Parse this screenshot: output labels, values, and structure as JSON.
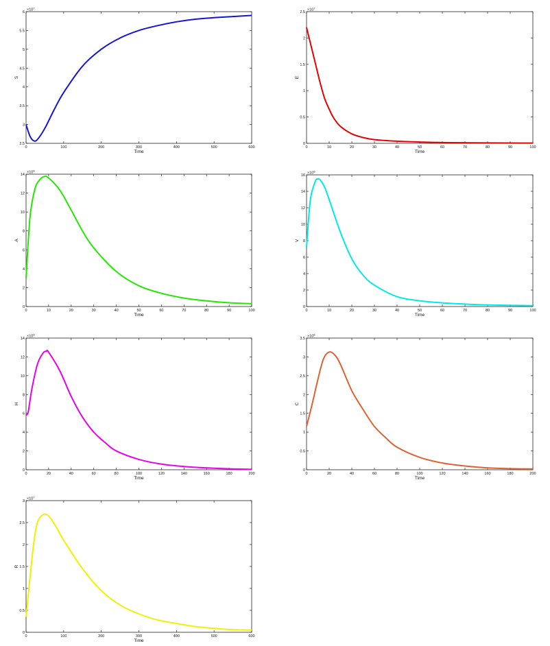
{
  "chart_data": [
    {
      "type": "line",
      "ylabel": "S",
      "xlabel": "Time",
      "multiplier_base": "×10",
      "multiplier_exponent": "7",
      "color": "#1414d8",
      "xlim": [
        0,
        600
      ],
      "ylim": [
        2.5,
        6
      ],
      "xticks": [
        0,
        100,
        200,
        300,
        400,
        500,
        600
      ],
      "yticks": [
        2.5,
        3,
        3.5,
        4,
        4.5,
        5,
        5.5,
        6
      ],
      "grid": false,
      "x": [
        0,
        10,
        20,
        30,
        50,
        75,
        100,
        150,
        200,
        250,
        300,
        350,
        400,
        450,
        500,
        550,
        600
      ],
      "y": [
        3.0,
        2.7,
        2.57,
        2.6,
        2.9,
        3.4,
        3.85,
        4.55,
        5.0,
        5.3,
        5.5,
        5.63,
        5.73,
        5.8,
        5.84,
        5.87,
        5.9
      ]
    },
    {
      "type": "line",
      "ylabel": "E",
      "xlabel": "Time",
      "multiplier_base": "×10",
      "multiplier_exponent": "7",
      "color": "#e80000",
      "xlim": [
        0,
        100
      ],
      "ylim": [
        0,
        2.5
      ],
      "xticks": [
        0,
        10,
        20,
        30,
        40,
        50,
        60,
        70,
        80,
        90,
        100
      ],
      "yticks": [
        0,
        0.5,
        1,
        1.5,
        2,
        2.5
      ],
      "grid": false,
      "x": [
        0,
        2,
        4,
        6,
        8,
        10,
        12,
        15,
        20,
        25,
        30,
        40,
        50,
        60,
        80,
        100
      ],
      "y": [
        2.2,
        1.85,
        1.5,
        1.15,
        0.85,
        0.65,
        0.48,
        0.32,
        0.18,
        0.11,
        0.07,
        0.04,
        0.025,
        0.015,
        0.008,
        0.005
      ]
    },
    {
      "type": "line",
      "ylabel": "A",
      "xlabel": "Time",
      "multiplier_base": "×10",
      "multiplier_exponent": "6",
      "color": "#22e800",
      "xlim": [
        0,
        100
      ],
      "ylim": [
        0,
        14
      ],
      "xticks": [
        0,
        10,
        20,
        30,
        40,
        50,
        60,
        70,
        80,
        90,
        100
      ],
      "yticks": [
        0,
        2,
        4,
        6,
        8,
        10,
        12,
        14
      ],
      "grid": false,
      "x": [
        0,
        1,
        2,
        4,
        6,
        8,
        10,
        15,
        20,
        25,
        30,
        40,
        50,
        60,
        70,
        80,
        90,
        100
      ],
      "y": [
        3,
        7,
        10,
        12.5,
        13.4,
        13.75,
        13.6,
        12.3,
        10.2,
        8.0,
        6.2,
        3.7,
        2.2,
        1.4,
        0.9,
        0.6,
        0.4,
        0.3
      ]
    },
    {
      "type": "line",
      "ylabel": "V",
      "xlabel": "Time",
      "multiplier_base": "×10",
      "multiplier_exponent": "6",
      "color": "#00e8e8",
      "xlim": [
        0,
        100
      ],
      "ylim": [
        0,
        16
      ],
      "xticks": [
        0,
        10,
        20,
        30,
        40,
        50,
        60,
        70,
        80,
        90,
        100
      ],
      "yticks": [
        0,
        2,
        4,
        6,
        8,
        10,
        12,
        14,
        16
      ],
      "grid": false,
      "x": [
        0,
        1,
        2,
        4,
        5,
        6,
        8,
        10,
        15,
        20,
        25,
        30,
        40,
        50,
        60,
        70,
        80,
        100
      ],
      "y": [
        7.2,
        11,
        13.5,
        15.3,
        15.5,
        15.4,
        14.5,
        13.0,
        9.0,
        5.8,
        3.8,
        2.6,
        1.2,
        0.7,
        0.45,
        0.3,
        0.2,
        0.1
      ]
    },
    {
      "type": "line",
      "ylabel": "H",
      "xlabel": "Time",
      "multiplier_base": "×10",
      "multiplier_exponent": "5",
      "color": "#e800e8",
      "xlim": [
        0,
        200
      ],
      "ylim": [
        0,
        14
      ],
      "xticks": [
        0,
        20,
        40,
        60,
        80,
        100,
        120,
        140,
        160,
        180,
        200
      ],
      "yticks": [
        0,
        2,
        4,
        6,
        8,
        10,
        12,
        14
      ],
      "grid": false,
      "x": [
        0,
        2,
        5,
        10,
        15,
        18,
        20,
        30,
        40,
        50,
        60,
        70,
        80,
        100,
        120,
        140,
        160,
        180,
        200
      ],
      "y": [
        5.8,
        6.2,
        8.5,
        11.2,
        12.4,
        12.6,
        12.5,
        10.5,
        7.8,
        5.6,
        4.0,
        2.9,
        2.0,
        1.1,
        0.6,
        0.35,
        0.2,
        0.1,
        0.05
      ]
    },
    {
      "type": "line",
      "ylabel": "C",
      "xlabel": "Time",
      "multiplier_base": "×10",
      "multiplier_exponent": "6",
      "color": "#e06030",
      "xlim": [
        0,
        200
      ],
      "ylim": [
        0,
        3.5
      ],
      "xticks": [
        0,
        20,
        40,
        60,
        80,
        100,
        120,
        140,
        160,
        180,
        200
      ],
      "yticks": [
        0,
        0.5,
        1,
        1.5,
        2,
        2.5,
        3,
        3.5
      ],
      "grid": false,
      "x": [
        0,
        5,
        10,
        15,
        20,
        25,
        30,
        40,
        50,
        60,
        70,
        80,
        100,
        120,
        140,
        160,
        180,
        200
      ],
      "y": [
        1.15,
        1.75,
        2.4,
        2.95,
        3.13,
        3.05,
        2.8,
        2.1,
        1.6,
        1.15,
        0.85,
        0.6,
        0.33,
        0.18,
        0.1,
        0.05,
        0.03,
        0.02
      ]
    },
    {
      "type": "line",
      "ylabel": "R",
      "xlabel": "Time",
      "multiplier_base": "×10",
      "multiplier_exponent": "7",
      "color": "#f0f000",
      "xlim": [
        0,
        600
      ],
      "ylim": [
        0,
        3
      ],
      "xticks": [
        0,
        100,
        200,
        300,
        400,
        500,
        600
      ],
      "yticks": [
        0,
        0.5,
        1,
        1.5,
        2,
        2.5,
        3
      ],
      "grid": false,
      "x": [
        0,
        10,
        20,
        30,
        45,
        60,
        80,
        100,
        150,
        200,
        250,
        300,
        350,
        400,
        450,
        500,
        550,
        600
      ],
      "y": [
        0.35,
        1.2,
        2.0,
        2.5,
        2.68,
        2.65,
        2.4,
        2.1,
        1.45,
        0.95,
        0.62,
        0.42,
        0.28,
        0.2,
        0.13,
        0.09,
        0.06,
        0.05
      ]
    }
  ]
}
